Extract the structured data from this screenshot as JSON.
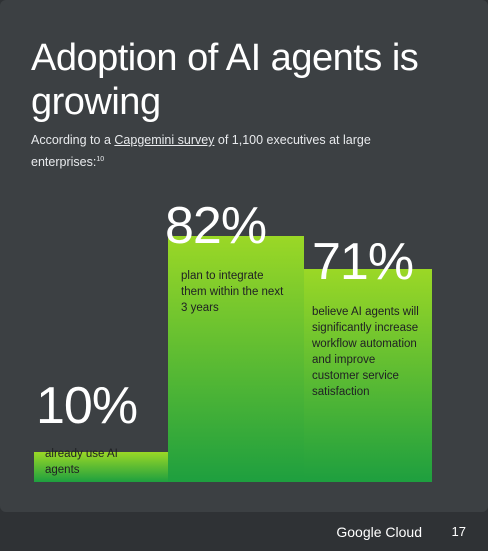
{
  "slide": {
    "title": "Adoption of AI agents is growing",
    "subtitle_pre": "According to a ",
    "subtitle_link": "Capgemini survey",
    "subtitle_post": " of 1,100 executives at large enterprises:",
    "subtitle_ref": "10"
  },
  "chart_data": {
    "type": "bar",
    "categories": [
      "already use AI agents",
      "plan to integrate them within the next 3 years",
      "believe AI agents will significantly increase workflow automation and improve customer service satisfaction"
    ],
    "values": [
      10,
      82,
      71
    ],
    "value_labels": [
      "10%",
      "82%",
      "71%"
    ],
    "ylim": [
      0,
      100
    ],
    "grid": false,
    "colors": {
      "bar_top": "#9bd826",
      "bar_bottom": "#1e9f3f"
    }
  },
  "footer": {
    "brand": "Google Cloud",
    "page_number": "17"
  }
}
